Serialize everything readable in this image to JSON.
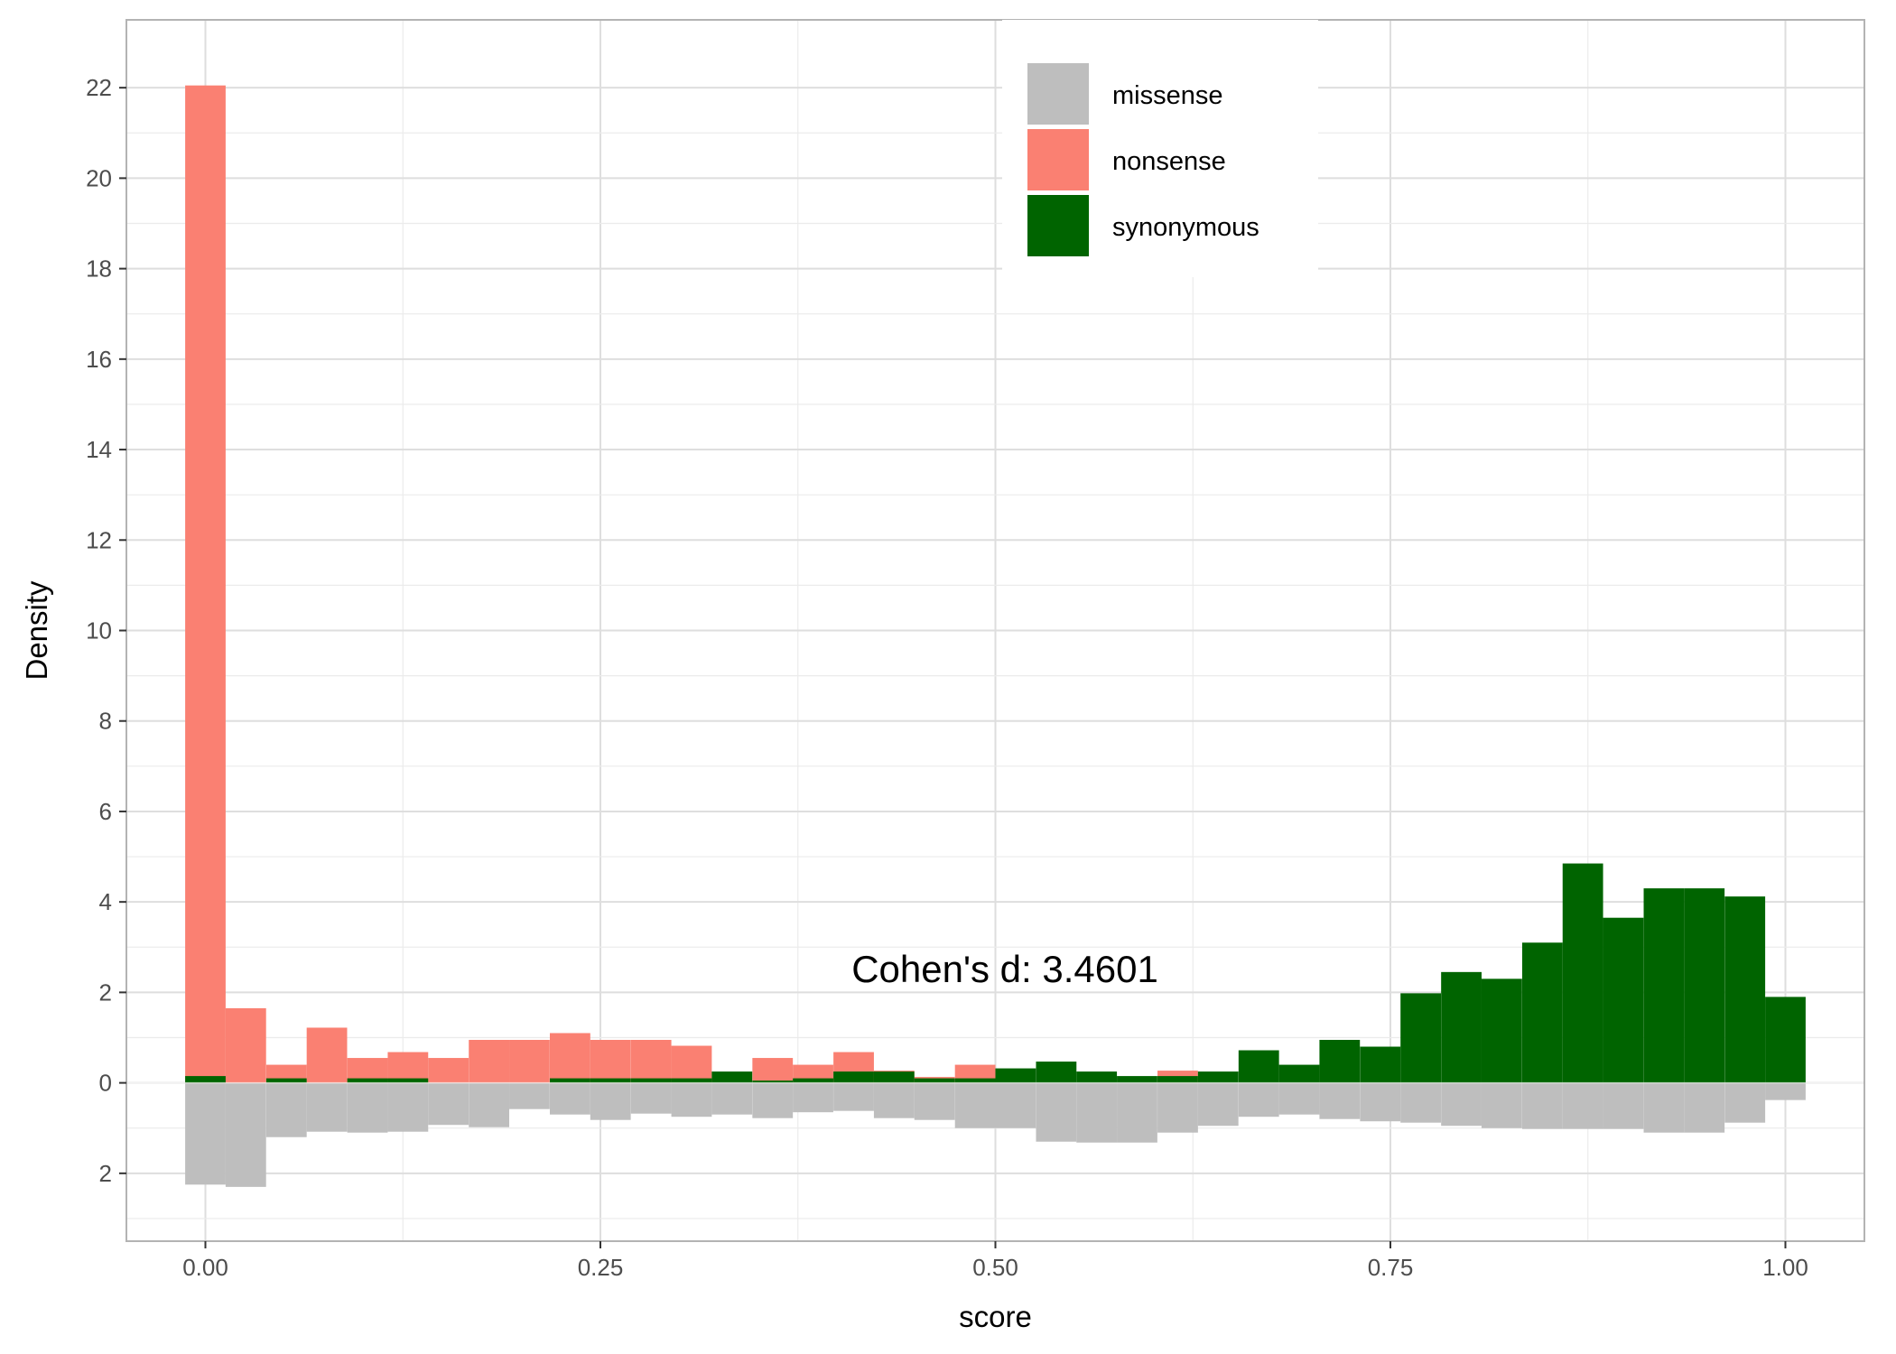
{
  "chart_data": {
    "type": "bar",
    "xlabel": "score",
    "ylabel": "Density",
    "xlim": [
      -0.05,
      1.05
    ],
    "ylim": [
      -3.5,
      23.5
    ],
    "x_ticks": [
      0,
      0.25,
      0.5,
      0.75,
      1.0
    ],
    "x_tick_labels": [
      "0.00",
      "0.25",
      "0.50",
      "0.75",
      "1.00"
    ],
    "y_ticks": [
      -2,
      0,
      2,
      4,
      6,
      8,
      10,
      12,
      14,
      16,
      18,
      20,
      22
    ],
    "y_tick_labels": [
      "2",
      "0",
      "2",
      "4",
      "6",
      "8",
      "10",
      "12",
      "14",
      "16",
      "18",
      "20",
      "22"
    ],
    "grid": true,
    "legend": {
      "position": "top-center",
      "entries": [
        "missense",
        "nonsense",
        "synonymous"
      ]
    },
    "annotation": "Cohen's d:  3.4601",
    "bin_width": 0.0256,
    "bin_centers": [
      0.0,
      0.0256,
      0.0513,
      0.0769,
      0.1026,
      0.1282,
      0.1538,
      0.1795,
      0.2051,
      0.2308,
      0.2564,
      0.2821,
      0.3077,
      0.3333,
      0.359,
      0.3846,
      0.4103,
      0.4359,
      0.4615,
      0.4872,
      0.5128,
      0.5385,
      0.5641,
      0.5897,
      0.6154,
      0.641,
      0.6667,
      0.6923,
      0.7179,
      0.7436,
      0.7692,
      0.7949,
      0.8205,
      0.8462,
      0.8718,
      0.8974,
      0.9231,
      0.9487,
      0.9744,
      1.0
    ],
    "series": [
      {
        "name": "missense",
        "color": "#bebebe",
        "direction": "down",
        "values": [
          2.25,
          2.3,
          1.2,
          1.08,
          1.1,
          1.08,
          0.93,
          0.98,
          0.58,
          0.7,
          0.82,
          0.68,
          0.75,
          0.7,
          0.78,
          0.65,
          0.62,
          0.78,
          0.82,
          1.0,
          1.0,
          1.3,
          1.32,
          1.32,
          1.1,
          0.95,
          0.75,
          0.7,
          0.8,
          0.85,
          0.88,
          0.95,
          1.0,
          1.02,
          1.02,
          1.02,
          1.1,
          1.1,
          0.88,
          0.38
        ]
      },
      {
        "name": "nonsense",
        "color": "#fa8072",
        "direction": "up",
        "values": [
          22.05,
          1.65,
          0.4,
          1.22,
          0.55,
          0.68,
          0.55,
          0.95,
          0.95,
          1.1,
          0.95,
          0.95,
          0.82,
          0.0,
          0.55,
          0.4,
          0.68,
          0.27,
          0.13,
          0.4,
          0.0,
          0.0,
          0.0,
          0.0,
          0.27,
          0.0,
          0.0,
          0.0,
          0.0,
          0.0,
          0.0,
          0.0,
          0.0,
          0.0,
          0.0,
          0.0,
          0.0,
          0.0,
          0.0,
          0.0
        ]
      },
      {
        "name": "synonymous",
        "color": "#006400",
        "direction": "up",
        "values": [
          0.15,
          0.0,
          0.1,
          0.0,
          0.1,
          0.1,
          0.0,
          0.0,
          0.0,
          0.1,
          0.1,
          0.1,
          0.1,
          0.25,
          0.05,
          0.1,
          0.25,
          0.25,
          0.1,
          0.1,
          0.32,
          0.47,
          0.25,
          0.15,
          0.15,
          0.25,
          0.72,
          0.4,
          0.95,
          0.8,
          1.98,
          2.45,
          2.3,
          3.1,
          4.85,
          3.65,
          4.3,
          4.3,
          4.12,
          1.9
        ]
      }
    ]
  }
}
